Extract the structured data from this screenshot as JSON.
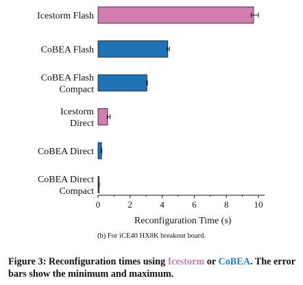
{
  "chart_data": {
    "type": "bar",
    "orientation": "horizontal",
    "categories": [
      [
        "Icestorm Flash"
      ],
      [
        "CoBEA Flash"
      ],
      [
        "CoBEA Flash",
        "Compact"
      ],
      [
        "Icestorm",
        "Direct"
      ],
      [
        "CoBEA Direct"
      ],
      [
        "CoBEA Direct",
        "Compact"
      ]
    ],
    "values": [
      9.7,
      4.35,
      3.05,
      0.6,
      0.22,
      0.07
    ],
    "error_min": [
      9.55,
      4.3,
      3.03,
      0.57,
      0.2,
      0.06
    ],
    "error_max": [
      10.0,
      4.45,
      3.08,
      0.75,
      0.24,
      0.08
    ],
    "bar_groups": [
      "Icestorm",
      "CoBEA",
      "CoBEA",
      "Icestorm",
      "CoBEA",
      "CoBEA"
    ],
    "colors": {
      "Icestorm": "#d37cb3",
      "CoBEA": "#1f72b4",
      "Icestorm_text": "#c77bb0",
      "CoBEA_text": "#1f7fc0"
    },
    "xlabel": "Reconfiguration Time (s)",
    "xlim": [
      0,
      10.4
    ],
    "xticks": [
      0,
      2,
      4,
      6,
      8,
      10
    ],
    "grid": false,
    "legend": "none"
  },
  "subcaption": "(b) For iCE40 HX8K breakout board.",
  "caption": {
    "prefix": "Figure 3: Reconfiguration times using ",
    "icestorm": "Icestorm",
    "or": " or ",
    "cobea": "CoBEA",
    "suffix": ". The error bars show the minimum and maximum."
  }
}
